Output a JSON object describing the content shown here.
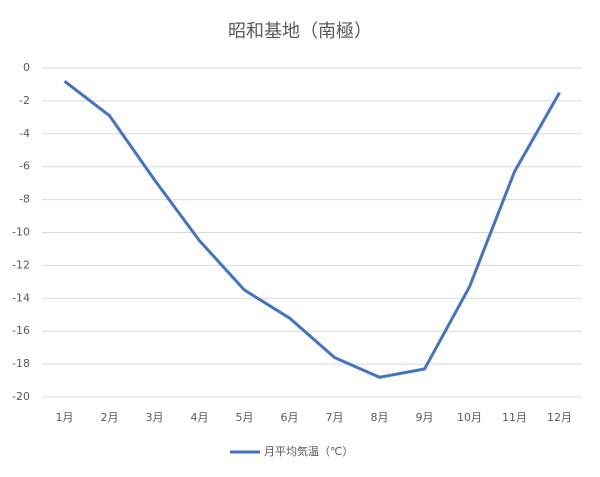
{
  "chart_data": {
    "type": "line",
    "title": "昭和基地（南極）",
    "categories": [
      "1月",
      "2月",
      "3月",
      "4月",
      "5月",
      "6月",
      "7月",
      "8月",
      "9月",
      "10月",
      "11月",
      "12月"
    ],
    "series": [
      {
        "name": "月平均気温（℃）",
        "color": "#4472c4",
        "values": [
          -0.8,
          -2.9,
          -6.8,
          -10.5,
          -13.5,
          -15.2,
          -17.6,
          -18.8,
          -18.3,
          -13.3,
          -6.3,
          -1.5
        ]
      }
    ],
    "ylim": [
      -20,
      0
    ],
    "yticks": [
      0,
      -2,
      -4,
      -6,
      -8,
      -10,
      -12,
      -14,
      -16,
      -18,
      -20
    ],
    "grid": true,
    "legend": "bottom"
  }
}
